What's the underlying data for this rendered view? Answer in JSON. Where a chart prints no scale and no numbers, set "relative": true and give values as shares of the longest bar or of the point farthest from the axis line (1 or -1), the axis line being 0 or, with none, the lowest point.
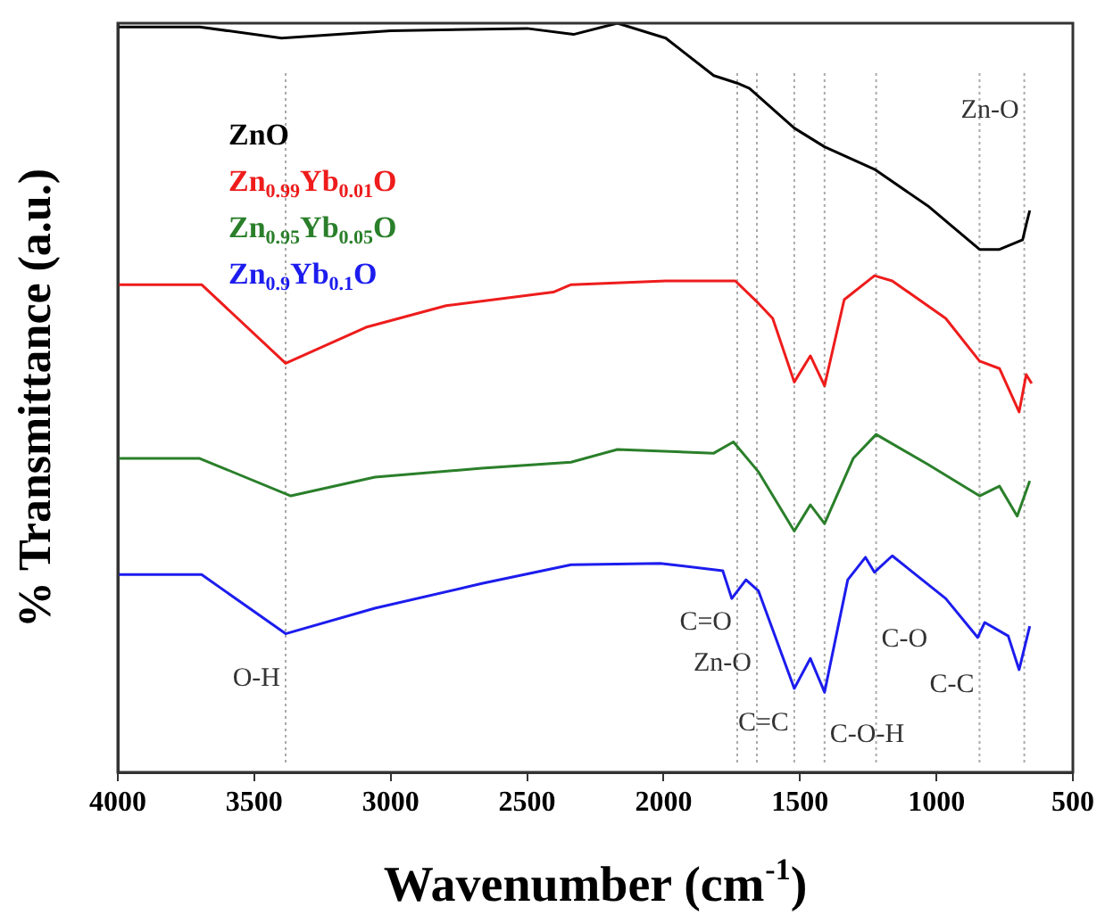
{
  "chart_data": {
    "type": "line",
    "relative": true,
    "xlabel": "Wavenumber (cm$^{-1}$)",
    "ylabel": "% Transmittance (a.u.)",
    "xlim": [
      4000,
      500
    ],
    "xticks": [
      4000,
      3500,
      3000,
      2500,
      2000,
      1500,
      1000,
      500
    ],
    "grid": false,
    "legend": "top left",
    "series": [
      {
        "name": "ZnO",
        "color": "#000000",
        "x": [
          4000,
          3700,
          3400,
          3000,
          2500,
          2330,
          2169,
          1992,
          1816,
          1730,
          1685,
          1521,
          1410,
          1227,
          1031,
          842,
          769,
          684,
          671,
          658
        ],
        "values": [
          0.995,
          0.995,
          0.98,
          0.99,
          0.993,
          0.985,
          1.0,
          0.98,
          0.93,
          0.92,
          0.913,
          0.86,
          0.835,
          0.805,
          0.756,
          0.698,
          0.698,
          0.711,
          0.731,
          0.75
        ]
      },
      {
        "name": "Zn$_{0.99}$Yb$_{0.01}$O",
        "color": "#ee1c1c",
        "x": [
          4000,
          3693,
          3385,
          3091,
          2797,
          2404,
          2339,
          1992,
          1737,
          1652,
          1600,
          1521,
          1462,
          1410,
          1338,
          1227,
          1162,
          966,
          842,
          769,
          697,
          671,
          651
        ],
        "values": [
          0.651,
          0.651,
          0.546,
          0.594,
          0.623,
          0.641,
          0.651,
          0.656,
          0.656,
          0.626,
          0.606,
          0.521,
          0.556,
          0.516,
          0.631,
          0.663,
          0.656,
          0.606,
          0.549,
          0.539,
          0.481,
          0.531,
          0.519
        ]
      },
      {
        "name": "Zn$_{0.95}$Yb$_{0.05}$O",
        "color": "#2a7f2a",
        "x": [
          4000,
          3700,
          3366,
          3058,
          2666,
          2339,
          2169,
          1816,
          1744,
          1652,
          1521,
          1462,
          1410,
          1305,
          1221,
          1031,
          842,
          769,
          704,
          658
        ],
        "values": [
          0.419,
          0.419,
          0.369,
          0.394,
          0.406,
          0.414,
          0.431,
          0.426,
          0.441,
          0.401,
          0.322,
          0.357,
          0.332,
          0.419,
          0.451,
          0.411,
          0.369,
          0.382,
          0.342,
          0.389
        ]
      },
      {
        "name": "Zn$_{0.9}$Yb$_{0.1}$O",
        "color": "#1c1cee",
        "x": [
          4000,
          3693,
          3385,
          3058,
          2666,
          2339,
          2012,
          1783,
          1750,
          1698,
          1652,
          1521,
          1462,
          1410,
          1325,
          1260,
          1227,
          1162,
          966,
          849,
          823,
          737,
          697,
          658
        ],
        "values": [
          0.264,
          0.264,
          0.185,
          0.219,
          0.252,
          0.277,
          0.279,
          0.269,
          0.232,
          0.257,
          0.242,
          0.112,
          0.152,
          0.107,
          0.257,
          0.287,
          0.267,
          0.289,
          0.232,
          0.18,
          0.2,
          0.182,
          0.137,
          0.195
        ]
      }
    ],
    "ref_lines": [
      {
        "axis": "x",
        "value": 3385,
        "color": "#aaaaaa",
        "line_style": "dotted"
      },
      {
        "axis": "x",
        "value": 1730,
        "color": "#aaaaaa",
        "line_style": "dotted"
      },
      {
        "axis": "x",
        "value": 1658,
        "color": "#aaaaaa",
        "line_style": "dotted"
      },
      {
        "axis": "x",
        "value": 1521,
        "color": "#aaaaaa",
        "line_style": "dotted"
      },
      {
        "axis": "x",
        "value": 1410,
        "color": "#aaaaaa",
        "line_style": "dotted"
      },
      {
        "axis": "x",
        "value": 1221,
        "color": "#aaaaaa",
        "line_style": "dotted"
      },
      {
        "axis": "x",
        "value": 842,
        "color": "#aaaaaa",
        "line_style": "dotted"
      },
      {
        "axis": "x",
        "value": 678,
        "color": "#aaaaaa",
        "line_style": "dotted"
      }
    ],
    "annotations": [
      {
        "text": "O-H",
        "x": 3385,
        "y": 0.125
      },
      {
        "text": "C=O",
        "x": 1730,
        "y": 0.2
      },
      {
        "text": "Zn-O",
        "x": 1658,
        "y": 0.145
      },
      {
        "text": "C=C",
        "x": 1521,
        "y": 0.065
      },
      {
        "text": "C-O-H",
        "x": 1410,
        "y": 0.05
      },
      {
        "text": "C-O",
        "x": 1221,
        "y": 0.177
      },
      {
        "text": "C-C",
        "x": 842,
        "y": 0.117
      },
      {
        "text": "Zn-O",
        "x": 678,
        "y": 0.883
      }
    ]
  }
}
